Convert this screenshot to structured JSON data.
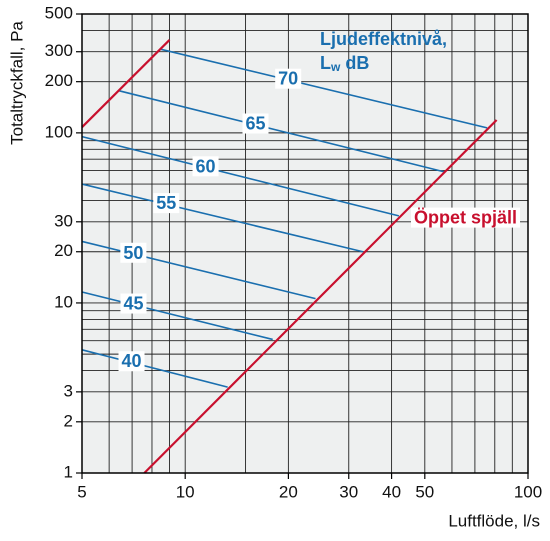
{
  "chart_data": {
    "type": "line",
    "x_label": "Luftflöde, l/s",
    "y_label": "Totaltryckfall, Pa",
    "legend_title": "Ljudeffektnivå,",
    "legend_unit": {
      "main": "L",
      "sub": "w",
      "suffix": "dB"
    },
    "log_x": true,
    "log_y": true,
    "grid": true,
    "xlim": [
      5,
      100
    ],
    "ylim": [
      1,
      500
    ],
    "xticks": [
      5,
      10,
      20,
      30,
      40,
      50,
      100
    ],
    "yticks": [
      1,
      2,
      3,
      10,
      20,
      30,
      100,
      200,
      300,
      500
    ],
    "xminor": [
      6,
      7,
      8,
      9,
      15,
      60,
      70,
      80,
      90
    ],
    "yminor": [
      4,
      5,
      6,
      7,
      8,
      9,
      40,
      50,
      60,
      70,
      80,
      90,
      400
    ],
    "series": [
      {
        "name": "70",
        "color": "#1a6faf",
        "x": [
          8.5,
          76
        ],
        "values": [
          310,
          107
        ]
      },
      {
        "name": "65",
        "color": "#1a6faf",
        "x": [
          6.4,
          57
        ],
        "values": [
          177,
          59
        ]
      },
      {
        "name": "60",
        "color": "#1a6faf",
        "x": [
          5,
          42
        ],
        "values": [
          95,
          32.5
        ]
      },
      {
        "name": "55",
        "color": "#1a6faf",
        "x": [
          5,
          33
        ],
        "values": [
          50,
          20
        ]
      },
      {
        "name": "50",
        "color": "#1a6faf",
        "x": [
          5,
          24
        ],
        "values": [
          23,
          10.6
        ]
      },
      {
        "name": "45",
        "color": "#1a6faf",
        "x": [
          5,
          18
        ],
        "values": [
          11.6,
          6.1
        ]
      },
      {
        "name": "40",
        "color": "#1a6faf",
        "x": [
          5,
          13.3
        ],
        "values": [
          5.3,
          3.2
        ]
      },
      {
        "name": "Öppet spjäll",
        "color": "#c8102e",
        "x": [
          7.6,
          81
        ],
        "values": [
          1,
          119
        ]
      },
      {
        "name": null,
        "color": "#c8102e",
        "x": [
          5,
          9
        ],
        "values": [
          108,
          352
        ]
      }
    ]
  }
}
